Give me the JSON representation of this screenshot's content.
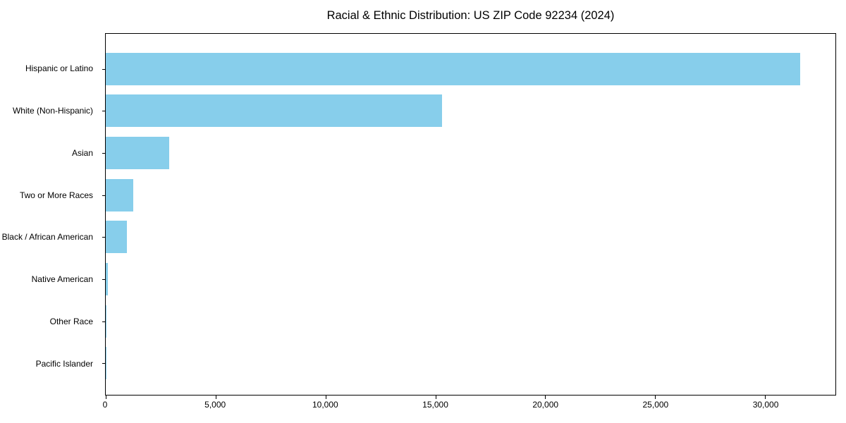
{
  "title": "Racial & Ethnic Distribution: US ZIP Code 92234 (2024)",
  "chart_data": {
    "type": "bar",
    "orientation": "horizontal",
    "title": "Racial & Ethnic Distribution: US ZIP Code 92234 (2024)",
    "xlabel": "",
    "ylabel": "",
    "categories": [
      "Hispanic or Latino",
      "White (Non-Hispanic)",
      "Asian",
      "Two or More Races",
      "Black / African American",
      "Native American",
      "Other Race",
      "Pacific Islander"
    ],
    "values": [
      31600,
      15300,
      2900,
      1250,
      960,
      100,
      30,
      15
    ],
    "xlim": [
      0,
      33200
    ],
    "xticks": [
      0,
      5000,
      10000,
      15000,
      20000,
      25000,
      30000
    ],
    "xtick_labels": [
      "0",
      "5,000",
      "10,000",
      "15,000",
      "20,000",
      "25,000",
      "30,000"
    ],
    "grid": false,
    "legend": null,
    "bar_color": "#87CEEB"
  },
  "colors": {
    "bar": "#87CEEB",
    "axis": "#000000",
    "text": "#000000",
    "background": "#ffffff"
  }
}
